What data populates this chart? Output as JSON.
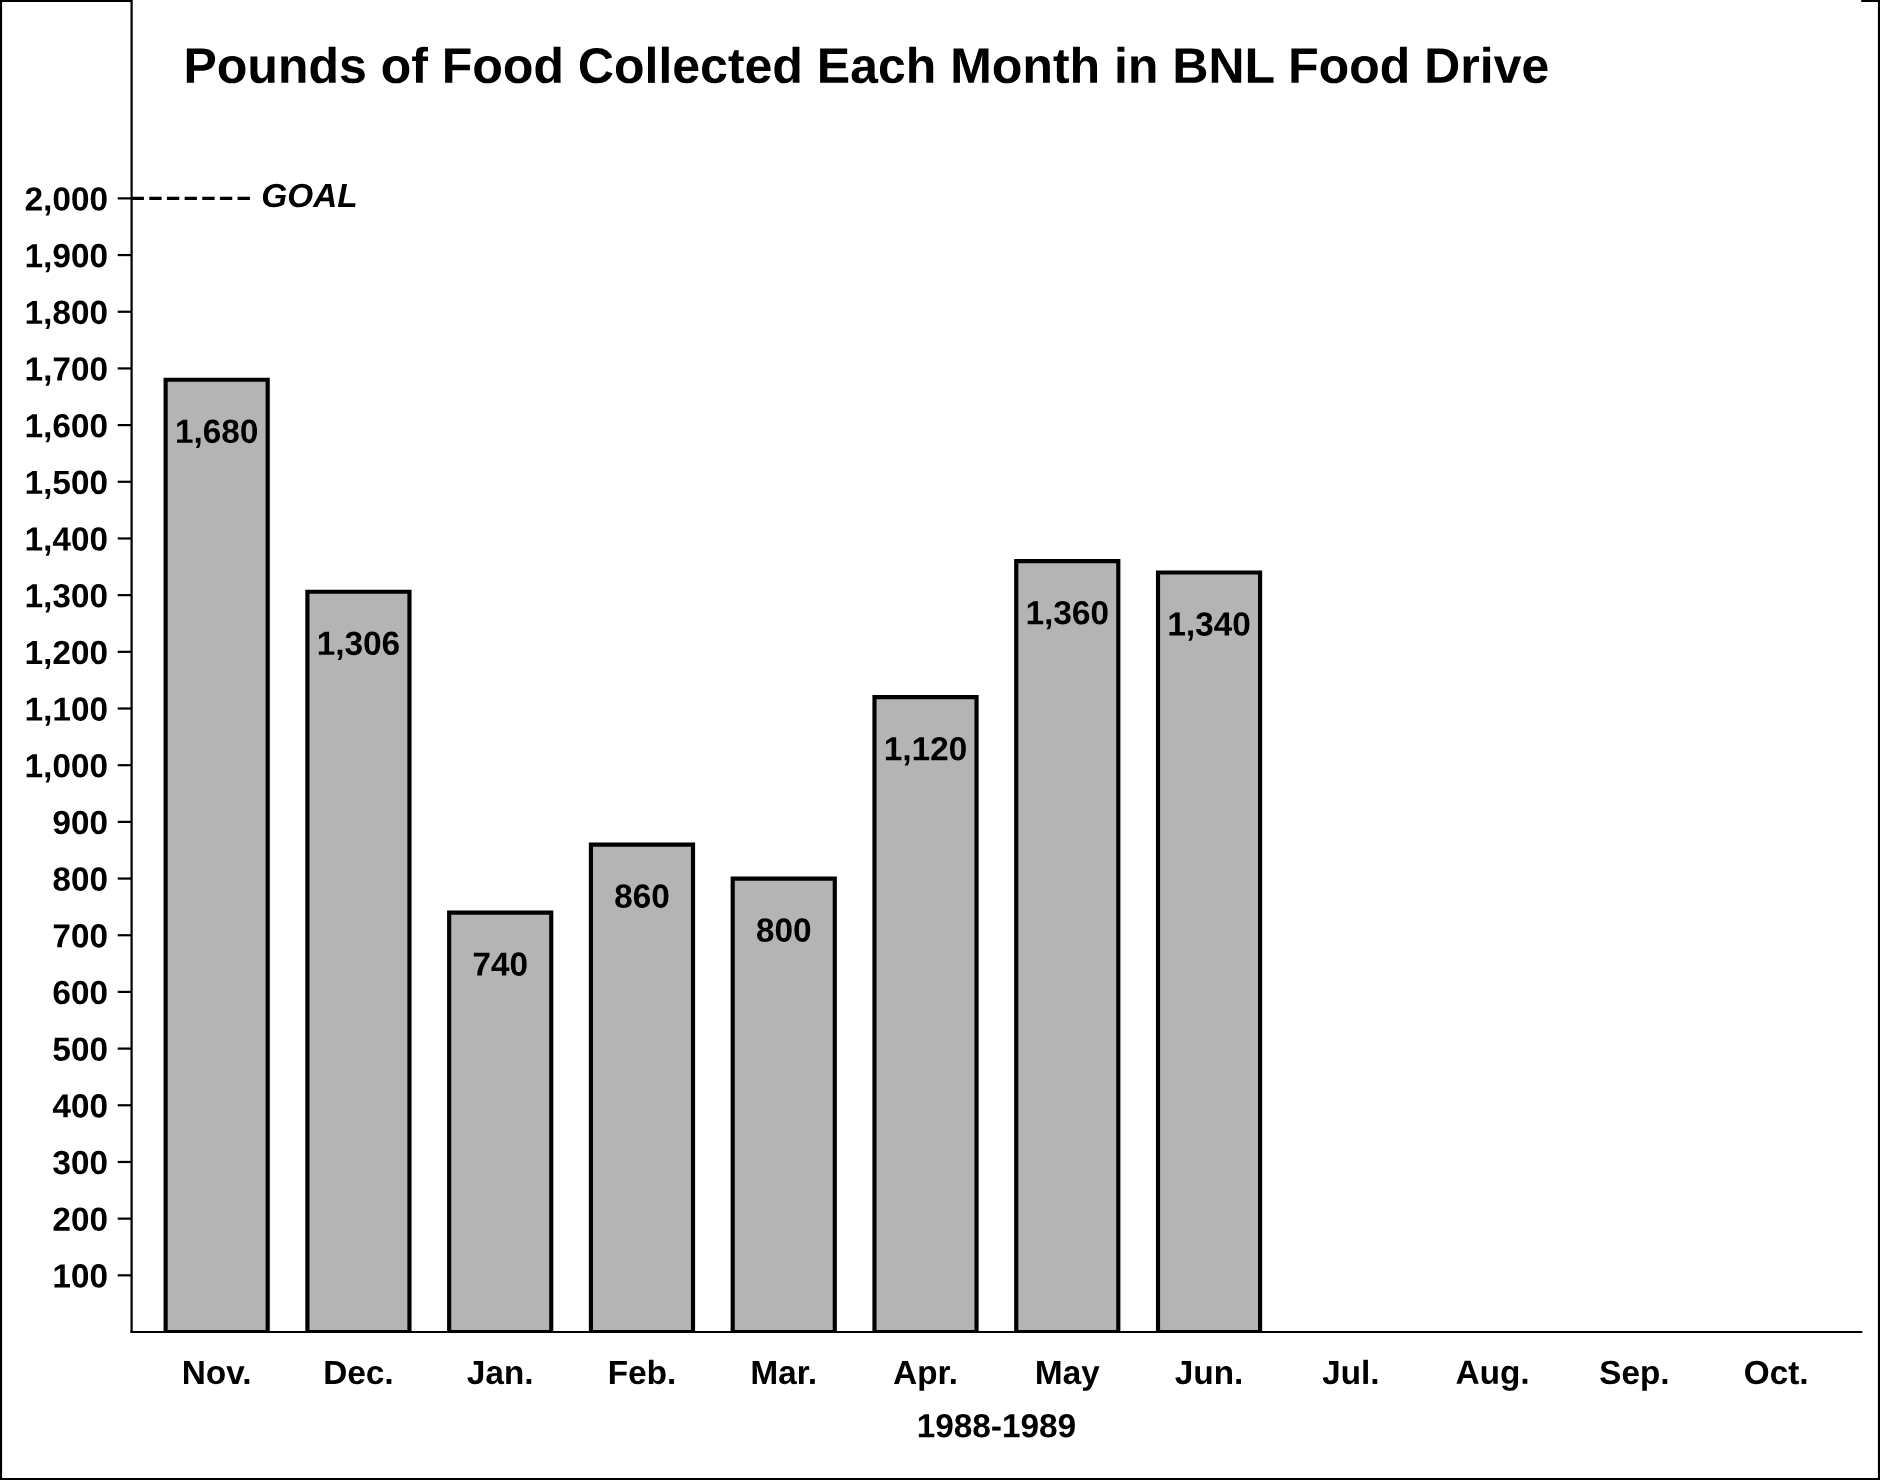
{
  "chart_data": {
    "type": "bar",
    "title": "Pounds of Food Collected Each Month in BNL Food Drive",
    "xlabel": "1988-1989",
    "categories": [
      "Nov.",
      "Dec.",
      "Jan.",
      "Feb.",
      "Mar.",
      "Apr.",
      "May",
      "Jun.",
      "Jul.",
      "Aug.",
      "Sep.",
      "Oct."
    ],
    "values": [
      1680,
      1306,
      740,
      860,
      800,
      1120,
      1360,
      1340,
      null,
      null,
      null,
      null
    ],
    "value_labels": [
      "1,680",
      "1,306",
      "740",
      "860",
      "800",
      "1,120",
      "1,360",
      "1,340",
      null,
      null,
      null,
      null
    ],
    "color": "#b4b4b4",
    "ylim": [
      0,
      2350
    ],
    "yticks": [
      {
        "value": 100,
        "label": "100"
      },
      {
        "value": 200,
        "label": "200"
      },
      {
        "value": 300,
        "label": "300"
      },
      {
        "value": 400,
        "label": "400"
      },
      {
        "value": 500,
        "label": "500"
      },
      {
        "value": 600,
        "label": "600"
      },
      {
        "value": 700,
        "label": "700"
      },
      {
        "value": 800,
        "label": "800"
      },
      {
        "value": 900,
        "label": "900"
      },
      {
        "value": 1000,
        "label": "1,000"
      },
      {
        "value": 1100,
        "label": "1,100"
      },
      {
        "value": 1200,
        "label": "1,200"
      },
      {
        "value": 1300,
        "label": "1,300"
      },
      {
        "value": 1400,
        "label": "1,400"
      },
      {
        "value": 1500,
        "label": "1,500"
      },
      {
        "value": 1600,
        "label": "1,600"
      },
      {
        "value": 1700,
        "label": "1,700"
      },
      {
        "value": 1800,
        "label": "1,800"
      },
      {
        "value": 1900,
        "label": "1,900"
      },
      {
        "value": 2000,
        "label": "2,000"
      }
    ],
    "ref_lines": [
      {
        "axis": "y",
        "value": 2000,
        "label": "GOAL",
        "line_style": "dashed",
        "color": "#000000"
      }
    ],
    "grid": false
  }
}
